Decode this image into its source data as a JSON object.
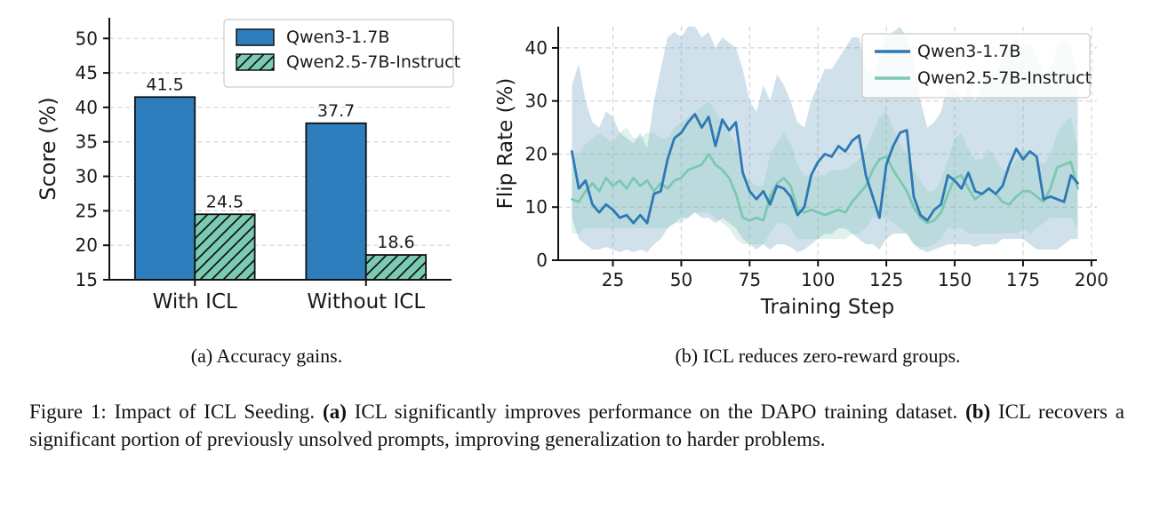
{
  "figure": {
    "captions": {
      "sub_a": "(a) Accuracy gains.",
      "sub_b": "(b) ICL reduces zero-reward groups.",
      "main_prefix": "Figure 1: Impact of ICL Seeding. ",
      "main_a_bold": "(a)",
      "main_a_text": " ICL significantly improves performance on the DAPO training dataset. ",
      "main_b_bold": "(b)",
      "main_b_text": " ICL recovers a significant portion of previously unsolved prompts, improving generalization to harder problems."
    }
  },
  "colors": {
    "blue": "#2e7bb8",
    "teal": "#7bcab4",
    "blue_band": "rgba(111,163,196,0.32)",
    "teal_band": "rgba(124,199,176,0.25)",
    "grid": "#d2d2d2",
    "spine": "#111111",
    "legend_edge": "#cccccc",
    "text": "#1a1a1a"
  },
  "chart_data": [
    {
      "type": "bar",
      "title": "",
      "categories": [
        "With ICL",
        "Without ICL"
      ],
      "series": [
        {
          "name": "Qwen3-1.7B",
          "values": [
            41.5,
            37.7
          ],
          "color": "#2e7ebd",
          "hatch": false
        },
        {
          "name": "Qwen2.5-7B-Instruct",
          "values": [
            24.5,
            18.6
          ],
          "color": "#7bcab4",
          "hatch": true
        }
      ],
      "bar_value_labels": [
        [
          "41.5",
          "37.7"
        ],
        [
          "24.5",
          "18.6"
        ]
      ],
      "xlabel": "",
      "ylabel": "Score (%)",
      "ylim": [
        15,
        53
      ],
      "yticks": [
        15,
        20,
        25,
        30,
        35,
        40,
        45,
        50
      ],
      "grid": "horizontal-dashed",
      "legend_position": "upper center-right"
    },
    {
      "type": "line",
      "title": "",
      "xlabel": "Training Step",
      "ylabel": "Flip Rate (%)",
      "xlim": [
        5,
        202
      ],
      "ylim": [
        0,
        44
      ],
      "xticks": [
        25,
        50,
        75,
        100,
        125,
        150,
        175,
        200
      ],
      "yticks": [
        0,
        10,
        20,
        30,
        40
      ],
      "grid": "both-dashed",
      "legend_position": "upper right",
      "x": [
        10,
        12.5,
        15,
        17.5,
        20,
        22.5,
        25,
        27.5,
        30,
        32.5,
        35,
        37.5,
        40,
        42.5,
        45,
        47.5,
        50,
        52.5,
        55,
        57.5,
        60,
        62.5,
        65,
        67.5,
        70,
        72.5,
        75,
        77.5,
        80,
        82.5,
        85,
        87.5,
        90,
        92.5,
        95,
        97.5,
        100,
        102.5,
        105,
        107.5,
        110,
        112.5,
        115,
        117.5,
        120,
        122.5,
        125,
        127.5,
        130,
        132.5,
        135,
        137.5,
        140,
        142.5,
        145,
        147.5,
        150,
        152.5,
        155,
        157.5,
        160,
        162.5,
        165,
        167.5,
        170,
        172.5,
        175,
        177.5,
        180,
        182.5,
        185,
        187.5,
        190,
        192.5,
        195
      ],
      "series": [
        {
          "name": "Qwen3-1.7B",
          "color": "#2e79b5",
          "band_color": "rgba(111,163,196,0.32)",
          "values": [
            20.5,
            13.5,
            15.0,
            10.5,
            9.0,
            10.5,
            9.5,
            8.0,
            8.5,
            7.0,
            8.5,
            7.0,
            12.5,
            13.0,
            19.0,
            23.0,
            24.0,
            26.0,
            27.5,
            25.0,
            27.0,
            21.5,
            26.5,
            24.5,
            26.0,
            16.5,
            13.0,
            11.5,
            13.0,
            10.5,
            14.0,
            13.5,
            12.0,
            8.5,
            10.0,
            16.0,
            18.5,
            20.0,
            19.5,
            21.5,
            20.5,
            22.5,
            23.5,
            16.0,
            12.0,
            8.0,
            18.0,
            21.5,
            24.0,
            24.5,
            12.0,
            8.5,
            7.5,
            9.5,
            10.5,
            16.0,
            15.0,
            13.5,
            16.5,
            13.0,
            12.5,
            13.5,
            12.5,
            14.0,
            18.0,
            21.0,
            19.0,
            20.5,
            19.5,
            11.5,
            12.0,
            11.5,
            11.0,
            16.0,
            14.5
          ],
          "band_upper": [
            33,
            37,
            30,
            26,
            25,
            28,
            27,
            24,
            23,
            22,
            24,
            21,
            30,
            36,
            42,
            43,
            42,
            44,
            44,
            42,
            43,
            40,
            42,
            41,
            40,
            36,
            30,
            28,
            33,
            30,
            35,
            33,
            30,
            26,
            25,
            30,
            33,
            36,
            36,
            38,
            40,
            42,
            42,
            36,
            35,
            38,
            42,
            43,
            44,
            42,
            38,
            30,
            25,
            26,
            28,
            33,
            32,
            30,
            33,
            30,
            33,
            35,
            35,
            38,
            40,
            42,
            40,
            41,
            38,
            35,
            36,
            40,
            42,
            40,
            35
          ],
          "band_lower": [
            8,
            4,
            3,
            2,
            2,
            2.5,
            2,
            1.5,
            2,
            1.5,
            2,
            1.5,
            3,
            4,
            6,
            7,
            8,
            8,
            9,
            8,
            8,
            7,
            8,
            7,
            6,
            4,
            3,
            2,
            3,
            2,
            3,
            3,
            2.5,
            1.5,
            2,
            3,
            4,
            5,
            5,
            6,
            6,
            5,
            4,
            3,
            3,
            2,
            4,
            5,
            5,
            5,
            3,
            2,
            1.5,
            2,
            2.5,
            3,
            3,
            3,
            3,
            2.5,
            3,
            3,
            3,
            4,
            4,
            4,
            4,
            3,
            2,
            2,
            2,
            2,
            3,
            4,
            4
          ]
        },
        {
          "name": "Qwen2.5-7B-Instruct",
          "color": "#7cc8b1",
          "band_color": "rgba(124,199,176,0.25)",
          "values": [
            11.5,
            11.0,
            13.0,
            14.5,
            13.0,
            15.5,
            14.0,
            15.0,
            13.5,
            15.5,
            14.0,
            15.0,
            13.0,
            14.5,
            13.5,
            15.0,
            15.5,
            17.0,
            17.5,
            18.0,
            20.0,
            18.0,
            17.0,
            15.5,
            12.5,
            8.0,
            7.5,
            8.0,
            7.5,
            12.0,
            14.5,
            15.5,
            14.0,
            9.5,
            9.0,
            9.5,
            9.0,
            8.5,
            9.0,
            9.5,
            9.0,
            11.0,
            12.5,
            14.0,
            17.0,
            19.0,
            19.5,
            17.0,
            15.0,
            13.0,
            10.0,
            8.0,
            7.0,
            7.5,
            9.0,
            12.5,
            15.5,
            16.0,
            13.5,
            11.5,
            12.5,
            13.5,
            12.5,
            11.0,
            10.5,
            12.0,
            13.0,
            13.0,
            12.0,
            11.0,
            13.5,
            17.5,
            18.0,
            18.5,
            13.5
          ],
          "band_upper": [
            19,
            20,
            22,
            23,
            24,
            23,
            22,
            24,
            25,
            23,
            23,
            24,
            24,
            23,
            23,
            25,
            26,
            27,
            28,
            29,
            30,
            28,
            26,
            24,
            22,
            16,
            15,
            14,
            14,
            20,
            22,
            24,
            22,
            18,
            16,
            16,
            16,
            16,
            17,
            17,
            17,
            18,
            19,
            21,
            24,
            27,
            28,
            25,
            22,
            20,
            17,
            15,
            13,
            13,
            15,
            19,
            23,
            24,
            21,
            19,
            19,
            21,
            19,
            17,
            17,
            19,
            21,
            20,
            19,
            18,
            20,
            24,
            26,
            27,
            21
          ],
          "band_lower": [
            5,
            5,
            6,
            6,
            6,
            6,
            6,
            6,
            6,
            6,
            6,
            6,
            6,
            6,
            6,
            7,
            7,
            8,
            9,
            9,
            9,
            8,
            7,
            6,
            4,
            3,
            3,
            3,
            3,
            5,
            7,
            7,
            6,
            4,
            4,
            4,
            4,
            4,
            4,
            4,
            4,
            5,
            5,
            6,
            8,
            8,
            8,
            7,
            6,
            5,
            3,
            2.5,
            2.5,
            3,
            4,
            6,
            6,
            6,
            5,
            5,
            5,
            5,
            5,
            5,
            5,
            5,
            6,
            5,
            6,
            7,
            8,
            8,
            8,
            8,
            6
          ]
        }
      ]
    }
  ]
}
